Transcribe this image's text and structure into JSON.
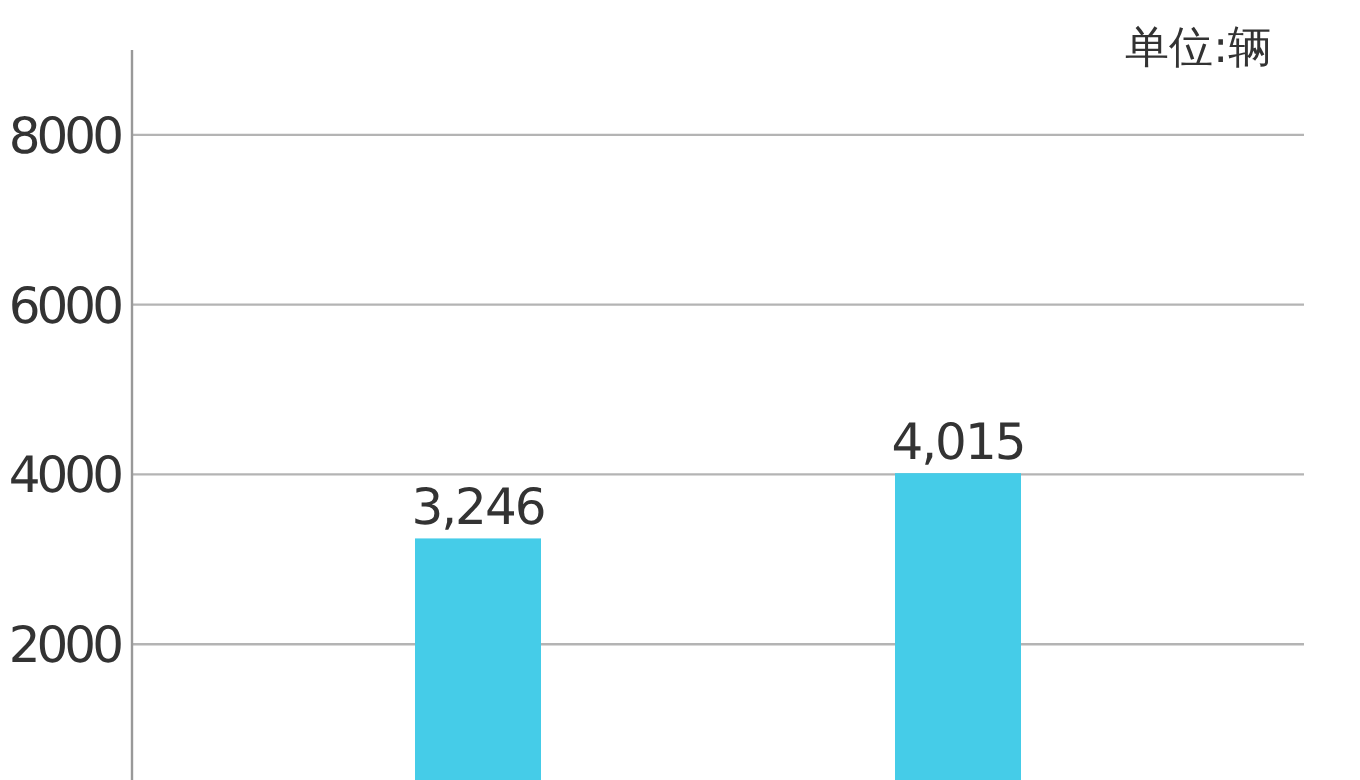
{
  "chart_data": {
    "type": "bar",
    "categories": [
      null,
      null
    ],
    "values": [
      3246,
      4015
    ],
    "value_labels": [
      "3,246",
      "4,015"
    ],
    "color": "#45cce8",
    "ylim": [
      400,
      9000
    ],
    "yticks": [
      2000,
      4000,
      6000,
      8000
    ],
    "grid": "y",
    "tick_labels": "y",
    "annotations": [
      "单位:辆"
    ]
  }
}
